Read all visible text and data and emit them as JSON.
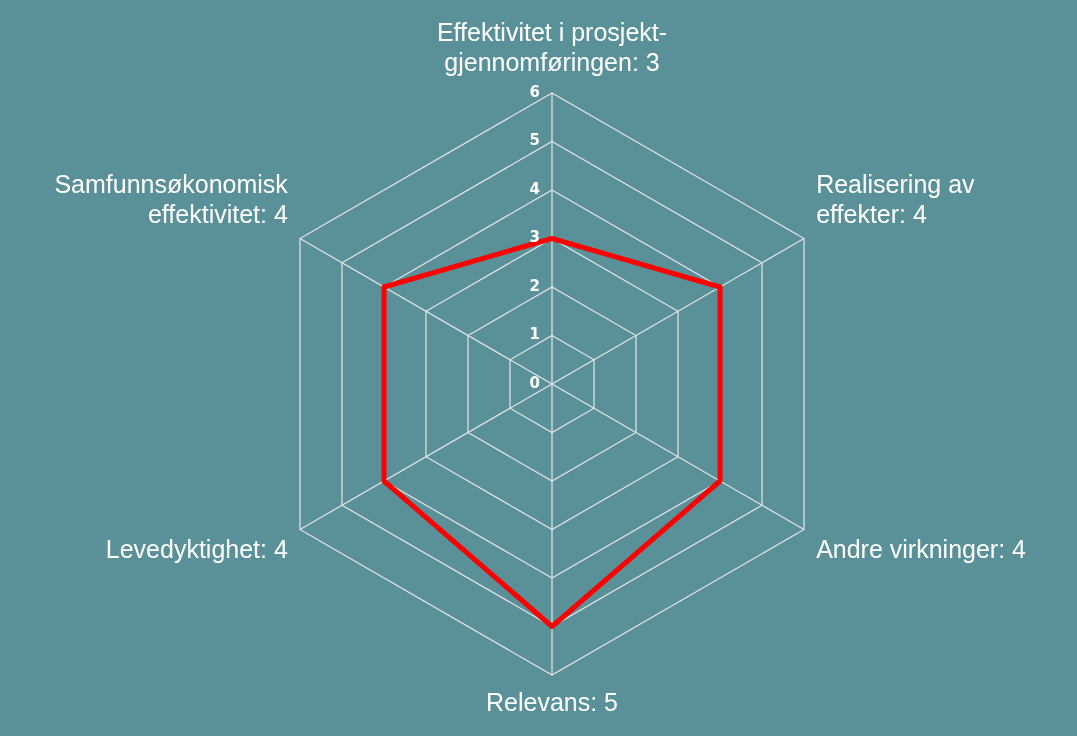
{
  "chart_data": {
    "type": "radar",
    "categories": [
      "Effektivitet i prosjekt-\ngjennomføringen: 3",
      "Realisering av\neffekter: 4",
      "Andre virkninger: 4",
      "Relevans: 5",
      "Levedyktighet: 4",
      "Samfunnsøkonomisk\neffektivitet: 4"
    ],
    "series": [
      {
        "color": "#ff0000",
        "values": [
          3,
          4,
          4,
          5,
          4,
          4
        ]
      }
    ],
    "ylim": [
      0,
      6
    ],
    "yticks": [
      0,
      1,
      2,
      3,
      4,
      5,
      6
    ],
    "grid": true,
    "marker": "none",
    "line_style": "solid"
  }
}
